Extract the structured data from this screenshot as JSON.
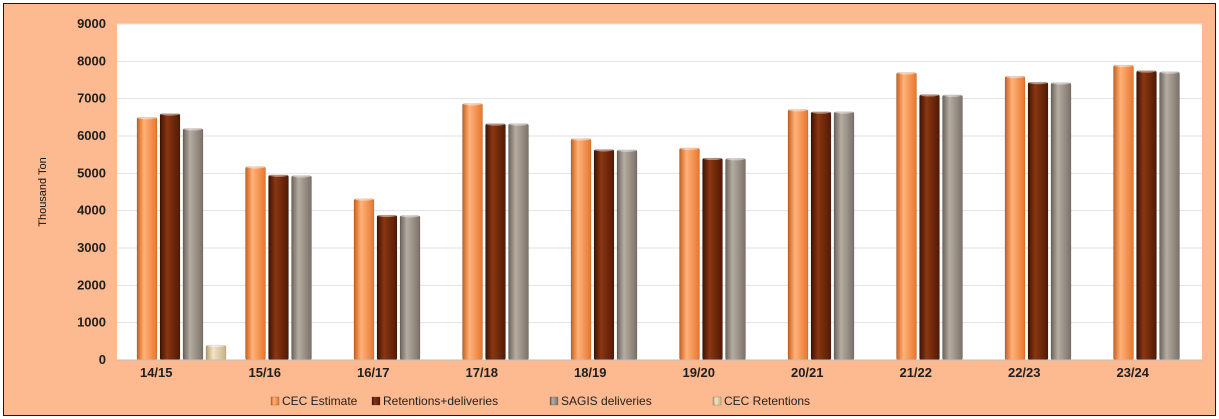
{
  "chart_data": {
    "type": "bar",
    "title": "",
    "xlabel": "",
    "ylabel": "Thousand Ton",
    "ylim": [
      0,
      9000
    ],
    "yticks": [
      0,
      1000,
      2000,
      3000,
      4000,
      5000,
      6000,
      7000,
      8000,
      9000
    ],
    "grid": true,
    "legend_position": "bottom",
    "categories": [
      "14/15",
      "15/16",
      "16/17",
      "17/18",
      "18/19",
      "19/20",
      "20/21",
      "21/22",
      "22/23",
      "23/24"
    ],
    "series": [
      {
        "name": "CEC Estimate",
        "color": "#f58a42",
        "values": [
          6500,
          5180,
          4320,
          6870,
          5930,
          5680,
          6710,
          7700,
          7600,
          7900
        ]
      },
      {
        "name": "Retentions+deliveries",
        "color": "#6a2208",
        "values": [
          6600,
          4960,
          3880,
          6330,
          5640,
          5410,
          6650,
          7110,
          7440,
          7750
        ]
      },
      {
        "name": "SAGIS deliveries",
        "color": "#8f847a",
        "values": [
          6200,
          4940,
          3870,
          6330,
          5630,
          5400,
          6650,
          7100,
          7430,
          7720
        ]
      },
      {
        "name": "CEC Retentions",
        "color": "#dcc9a0",
        "values": [
          400,
          null,
          null,
          null,
          null,
          null,
          null,
          null,
          null,
          null
        ]
      }
    ]
  }
}
